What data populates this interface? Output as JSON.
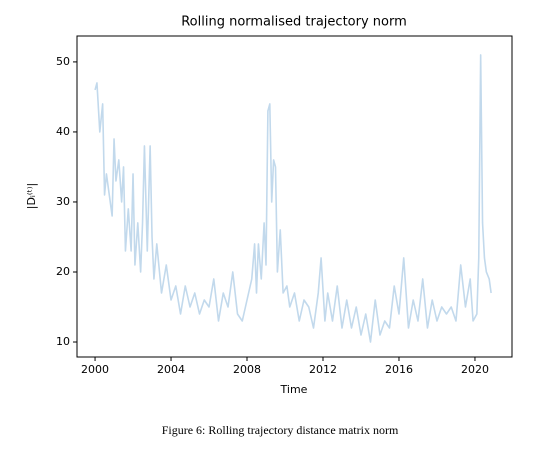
{
  "chart_data": {
    "type": "line",
    "title": "Rolling normalised trajectory norm",
    "xlabel": "Time",
    "ylabel": "|Dᵢ⁽ᵗ⁾|",
    "caption": "Figure 6: Rolling trajectory distance matrix norm",
    "x": [
      2000.0,
      2000.1,
      2000.25,
      2000.4,
      2000.5,
      2000.6,
      2000.75,
      2000.9,
      2001.0,
      2001.1,
      2001.25,
      2001.4,
      2001.5,
      2001.6,
      2001.75,
      2001.9,
      2002.0,
      2002.1,
      2002.25,
      2002.4,
      2002.5,
      2002.6,
      2002.75,
      2002.9,
      2003.0,
      2003.1,
      2003.25,
      2003.5,
      2003.75,
      2004.0,
      2004.25,
      2004.5,
      2004.75,
      2005.0,
      2005.25,
      2005.5,
      2005.75,
      2006.0,
      2006.25,
      2006.5,
      2006.75,
      2007.0,
      2007.25,
      2007.5,
      2007.75,
      2008.0,
      2008.25,
      2008.4,
      2008.5,
      2008.6,
      2008.75,
      2008.9,
      2009.0,
      2009.1,
      2009.2,
      2009.3,
      2009.4,
      2009.5,
      2009.6,
      2009.75,
      2009.9,
      2010.1,
      2010.25,
      2010.5,
      2010.75,
      2011.0,
      2011.25,
      2011.5,
      2011.75,
      2011.9,
      2012.1,
      2012.25,
      2012.5,
      2012.75,
      2013.0,
      2013.25,
      2013.5,
      2013.75,
      2014.0,
      2014.25,
      2014.5,
      2014.75,
      2015.0,
      2015.25,
      2015.5,
      2015.75,
      2016.0,
      2016.25,
      2016.5,
      2016.75,
      2017.0,
      2017.25,
      2017.5,
      2017.75,
      2018.0,
      2018.25,
      2018.5,
      2018.75,
      2019.0,
      2019.25,
      2019.5,
      2019.75,
      2019.9,
      2020.1,
      2020.2,
      2020.3,
      2020.4,
      2020.5,
      2020.6,
      2020.75,
      2020.85
    ],
    "series": [
      {
        "name": "norm",
        "color": "#c2d9ec",
        "values": [
          46,
          47,
          40,
          44,
          31,
          34,
          31,
          28,
          39,
          33,
          36,
          30,
          35,
          23,
          29,
          23,
          34,
          21,
          27,
          20,
          27,
          38,
          23,
          38,
          25,
          19,
          24,
          17,
          21,
          16,
          18,
          14,
          18,
          15,
          17,
          14,
          16,
          15,
          19,
          13,
          17,
          15,
          20,
          14,
          13,
          16,
          19,
          24,
          17,
          24,
          19,
          27,
          21,
          43,
          44,
          30,
          36,
          35,
          20,
          26,
          17,
          18,
          15,
          17,
          13,
          16,
          15,
          12,
          17,
          22,
          13,
          17,
          13,
          18,
          12,
          16,
          12,
          15,
          11,
          14,
          10,
          16,
          11,
          13,
          12,
          18,
          14,
          22,
          12,
          16,
          13,
          19,
          12,
          16,
          13,
          15,
          14,
          15,
          13,
          21,
          15,
          19,
          13,
          14,
          22,
          51,
          27,
          22,
          20,
          19,
          17
        ]
      }
    ],
    "xlim": [
      1999.05,
      2021.95
    ],
    "ylim": [
      7.86,
      53.7
    ],
    "xticks": [
      2000,
      2004,
      2008,
      2012,
      2016,
      2020
    ],
    "yticks": [
      10,
      20,
      30,
      40,
      50
    ]
  }
}
